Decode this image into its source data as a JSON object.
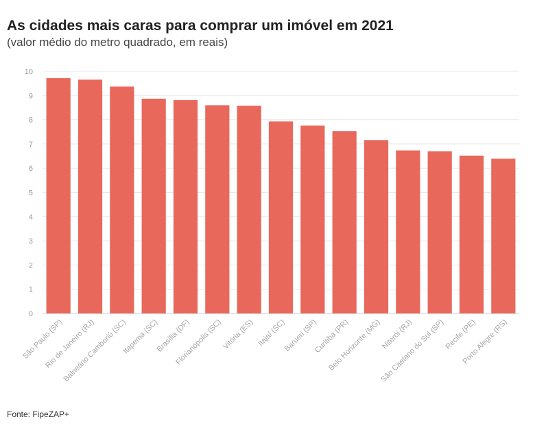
{
  "header": {
    "title": "As cidades mais caras para comprar um imóvel em 2021",
    "subtitle": "(valor médio do metro quadrado, em reais)"
  },
  "footer": {
    "source": "Fonte: FipeZAP+"
  },
  "colors": {
    "bar": "#e8685b",
    "grid": "#e8e8e8",
    "axis": "#cccccc"
  },
  "chart_data": {
    "type": "bar",
    "title": "As cidades mais caras para comprar um imóvel em 2021",
    "subtitle": "(valor médio do metro quadrado, em reais)",
    "xlabel": "",
    "ylabel": "",
    "ylim": [
      0,
      10
    ],
    "yticks": [
      0,
      1,
      2,
      3,
      4,
      5,
      6,
      7,
      8,
      9,
      10
    ],
    "grid": true,
    "legend": "none",
    "categories": [
      "São Paulo (SP)",
      "Rio de Janeiro (RJ)",
      "Balneário Camboriú (SC)",
      "Itapema (SC)",
      "Brasília (DF)",
      "Florianópolis (SC)",
      "Vitória (ES)",
      "Itajaí (SC)",
      "Barueri (SP)",
      "Curitiba (PR)",
      "Belo Horizonte (MG)",
      "Niterói (RJ)",
      "São Caetano do Sul (SP)",
      "Recife (PE)",
      "Porto Alegre (RS)"
    ],
    "values": [
      9.72,
      9.66,
      9.37,
      8.87,
      8.81,
      8.6,
      8.58,
      7.93,
      7.76,
      7.53,
      7.16,
      6.73,
      6.7,
      6.52,
      6.39
    ]
  }
}
